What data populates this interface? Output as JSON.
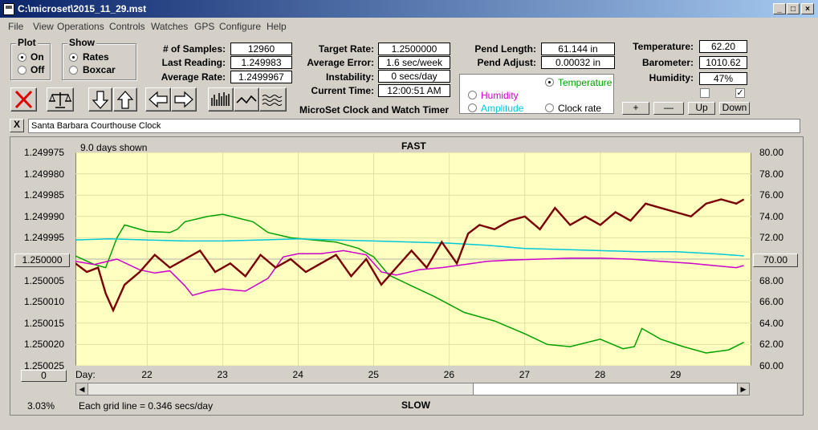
{
  "window": {
    "title": "C:\\microset\\2015_11_29.mst"
  },
  "menu": [
    "File",
    "View",
    "Operations",
    "Controls",
    "Watches",
    "GPS",
    "Configure",
    "Help"
  ],
  "plot": {
    "label": "Plot",
    "on": "On",
    "off": "Off",
    "selected": "On"
  },
  "show": {
    "label": "Show",
    "rates": "Rates",
    "boxcar": "Boxcar",
    "selected": "Rates"
  },
  "stats": {
    "samples_label": "# of Samples:",
    "samples": "12960",
    "last_label": "Last Reading:",
    "last": "1.249983",
    "avg_label": "Average Rate:",
    "avg": "1.2499967",
    "target_label": "Target Rate:",
    "target": "1.2500000",
    "avgerr_label": "Average Error:",
    "avgerr": "1.6 sec/week",
    "instab_label": "Instability:",
    "instab": "0 secs/day",
    "time_label": "Current Time:",
    "time": "12:00:51 AM",
    "pendlen_label": "Pend Length:",
    "pendlen": "61.144 in",
    "pendadj_label": "Pend Adjust:",
    "pendadj": "0.00032 in",
    "temp_label": "Temperature:",
    "temp": "62.20",
    "baro_label": "Barometer:",
    "baro": "1010.62",
    "hum_label": "Humidity:",
    "hum": "47%"
  },
  "app_caption": "MicroSet Clock and Watch Timer",
  "overlay": {
    "temperature": "Temperature",
    "humidity": "Humidity",
    "amplitude": "Amplitude",
    "clockrate": "Clock rate",
    "selected": "Temperature",
    "colors": {
      "temperature": "#00a000",
      "humidity": "#cc00cc",
      "amplitude": "#00c8d8",
      "clockrate": "#000000"
    }
  },
  "scale_buttons": {
    "plus": "+",
    "minus": "—",
    "up": "Up",
    "down": "Down"
  },
  "check_states": [
    false,
    true
  ],
  "clock_name": "Santa Barbara Courthouse Clock",
  "close_x": "X",
  "chart": {
    "days_shown": "9.0 days shown",
    "top_label": "FAST",
    "bottom_label": "SLOW",
    "center_left": "1.250000",
    "center_right": "70.00",
    "offset_btn": "0",
    "day_label": "Day:",
    "grid_note": "Each grid line = 0.346 secs/day",
    "percent": "3.03%"
  },
  "chart_data": {
    "type": "line",
    "x_ticks": [
      "22",
      "23",
      "24",
      "25",
      "26",
      "27",
      "28",
      "29"
    ],
    "y_left_ticks": [
      "1.249975",
      "1.249980",
      "1.249985",
      "1.249990",
      "1.249995",
      "1.250000",
      "1.250005",
      "1.250010",
      "1.250015",
      "1.250020",
      "1.250025"
    ],
    "y_right_ticks": [
      "80.00",
      "78.00",
      "76.00",
      "74.00",
      "72.00",
      "70.00",
      "68.00",
      "66.00",
      "64.00",
      "62.00",
      "60.00"
    ],
    "xlim": [
      21.05,
      30.0
    ],
    "ylim_right": [
      60,
      80
    ],
    "grid": true,
    "series": [
      {
        "name": "Temperature",
        "color": "#00a000",
        "x": [
          21.05,
          21.3,
          21.45,
          21.6,
          21.7,
          22.0,
          22.3,
          22.4,
          22.5,
          22.8,
          23.0,
          23.4,
          23.6,
          23.9,
          24.2,
          24.5,
          24.8,
          25.0,
          25.2,
          25.5,
          25.8,
          26.2,
          26.6,
          27.0,
          27.3,
          27.6,
          28.0,
          28.3,
          28.45,
          28.55,
          28.8,
          29.1,
          29.4,
          29.7,
          29.9
        ],
        "y": [
          70.3,
          69.5,
          69.2,
          72.0,
          73.2,
          72.6,
          72.5,
          72.8,
          73.5,
          74.0,
          74.2,
          73.5,
          72.5,
          72.0,
          71.8,
          71.6,
          71.0,
          70.2,
          68.5,
          67.5,
          66.5,
          65.0,
          64.2,
          63.0,
          62.0,
          61.8,
          62.5,
          61.6,
          61.8,
          63.5,
          62.5,
          61.8,
          61.2,
          61.5,
          62.2
        ]
      },
      {
        "name": "Humidity",
        "color": "#cc00cc",
        "x": [
          21.05,
          21.3,
          21.6,
          21.9,
          22.1,
          22.3,
          22.5,
          22.6,
          22.8,
          23.0,
          23.3,
          23.6,
          23.8,
          24.0,
          24.3,
          24.6,
          24.9,
          25.0,
          25.1,
          25.3,
          25.6,
          25.9,
          26.2,
          26.5,
          26.8,
          27.2,
          27.6,
          28.0,
          28.4,
          28.8,
          29.2,
          29.5,
          29.8,
          29.9
        ],
        "y": [
          69.8,
          69.5,
          70.0,
          69.0,
          68.7,
          68.9,
          67.5,
          66.6,
          67.0,
          67.2,
          67.0,
          68.2,
          70.2,
          70.5,
          70.5,
          70.8,
          70.4,
          69.6,
          68.8,
          68.5,
          69.0,
          69.2,
          69.5,
          69.8,
          69.9,
          70.0,
          70.1,
          70.1,
          70.0,
          69.8,
          69.6,
          69.4,
          69.2,
          69.4
        ]
      },
      {
        "name": "Amplitude",
        "color": "#00c8d8",
        "x": [
          21.05,
          21.5,
          22.0,
          22.5,
          23.0,
          23.5,
          24.0,
          24.5,
          25.0,
          25.5,
          26.0,
          26.5,
          27.0,
          27.5,
          28.0,
          28.5,
          29.0,
          29.5,
          29.9
        ],
        "y": [
          71.8,
          71.9,
          71.8,
          71.7,
          71.7,
          71.8,
          71.9,
          71.8,
          71.7,
          71.6,
          71.5,
          71.3,
          71.0,
          70.9,
          70.8,
          70.7,
          70.7,
          70.5,
          70.3
        ]
      },
      {
        "name": "Clock rate",
        "color": "#7a0000",
        "x": [
          21.05,
          21.2,
          21.35,
          21.45,
          21.55,
          21.7,
          21.9,
          22.1,
          22.3,
          22.5,
          22.7,
          22.9,
          23.1,
          23.3,
          23.5,
          23.7,
          23.9,
          24.1,
          24.3,
          24.5,
          24.7,
          24.9,
          25.1,
          25.3,
          25.5,
          25.7,
          25.9,
          26.1,
          26.25,
          26.4,
          26.6,
          26.8,
          27.0,
          27.2,
          27.4,
          27.6,
          27.8,
          28.0,
          28.2,
          28.4,
          28.6,
          28.8,
          29.0,
          29.2,
          29.4,
          29.6,
          29.8,
          29.9
        ],
        "y": [
          1.250001,
          1.250003,
          1.250002,
          1.250008,
          1.250012,
          1.250006,
          1.250003,
          1.249999,
          1.250002,
          1.25,
          1.249998,
          1.250003,
          1.250001,
          1.250004,
          1.249999,
          1.250002,
          1.25,
          1.250003,
          1.250001,
          1.249999,
          1.250004,
          1.25,
          1.250006,
          1.250002,
          1.249998,
          1.250002,
          1.249996,
          1.250001,
          1.249994,
          1.249992,
          1.249993,
          1.249991,
          1.24999,
          1.249993,
          1.249988,
          1.249992,
          1.24999,
          1.249992,
          1.249989,
          1.249991,
          1.249987,
          1.249988,
          1.249989,
          1.24999,
          1.249987,
          1.249986,
          1.249987,
          1.249986
        ]
      }
    ]
  }
}
